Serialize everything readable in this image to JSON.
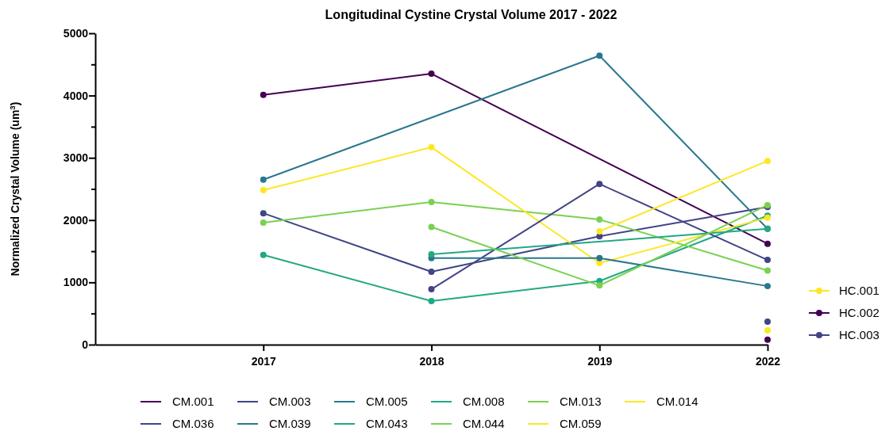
{
  "chart_data": {
    "type": "line",
    "title": "Longitudinal Cystine Crystal Volume 2017 - 2022",
    "ylabel": "Normalized Crystal Volume (um$^{3}$)",
    "categories": [
      "2017",
      "2018",
      "2019",
      "2022"
    ],
    "ylim": [
      0,
      5000
    ],
    "yticks": [
      0,
      {
        "value": 500,
        "label": null
      },
      1000,
      {
        "value": 1500,
        "label": null
      },
      2000,
      {
        "value": 2500,
        "label": null
      },
      3000,
      {
        "value": 3500,
        "label": null
      },
      4000,
      {
        "value": 4500,
        "label": null
      },
      5000
    ],
    "marker": "circle",
    "legend": "bottom",
    "series": [
      {
        "name": "CM.001",
        "color": "#440154",
        "values": [
          4010,
          4350,
          null,
          1620
        ]
      },
      {
        "name": "CM.003",
        "color": "#414487",
        "values": [
          2110,
          1170,
          1740,
          2210
        ]
      },
      {
        "name": "CM.005",
        "color": "#2a788e",
        "values": [
          2650,
          null,
          4640,
          1860
        ]
      },
      {
        "name": "CM.008",
        "color": "#22a884",
        "values": [
          1440,
          700,
          1020,
          2070
        ]
      },
      {
        "name": "CM.013",
        "color": "#7ad151",
        "values": [
          1960,
          2290,
          2010,
          1190
        ]
      },
      {
        "name": "CM.014",
        "color": "#fde725",
        "values": [
          2480,
          3170,
          1310,
          2040
        ]
      },
      {
        "name": "CM.036",
        "color": "#414487",
        "values": [
          null,
          890,
          2580,
          1360
        ]
      },
      {
        "name": "CM.039",
        "color": "#2a788e",
        "values": [
          null,
          1390,
          1390,
          940
        ]
      },
      {
        "name": "CM.043",
        "color": "#22a884",
        "values": [
          null,
          1450,
          null,
          1860
        ]
      },
      {
        "name": "CM.044",
        "color": "#7ad151",
        "values": [
          null,
          1890,
          950,
          2240
        ]
      },
      {
        "name": "CM.059",
        "color": "#fde725",
        "values": [
          null,
          null,
          1820,
          2950
        ]
      },
      {
        "name": "HC.001",
        "type": "scatter",
        "color": "#fde725",
        "values": [
          null,
          null,
          null,
          230
        ]
      },
      {
        "name": "HC.002",
        "type": "scatter",
        "color": "#440154",
        "values": [
          null,
          null,
          null,
          80
        ]
      },
      {
        "name": "HC.003",
        "type": "scatter",
        "color": "#414487",
        "values": [
          null,
          null,
          null,
          370
        ]
      }
    ]
  }
}
